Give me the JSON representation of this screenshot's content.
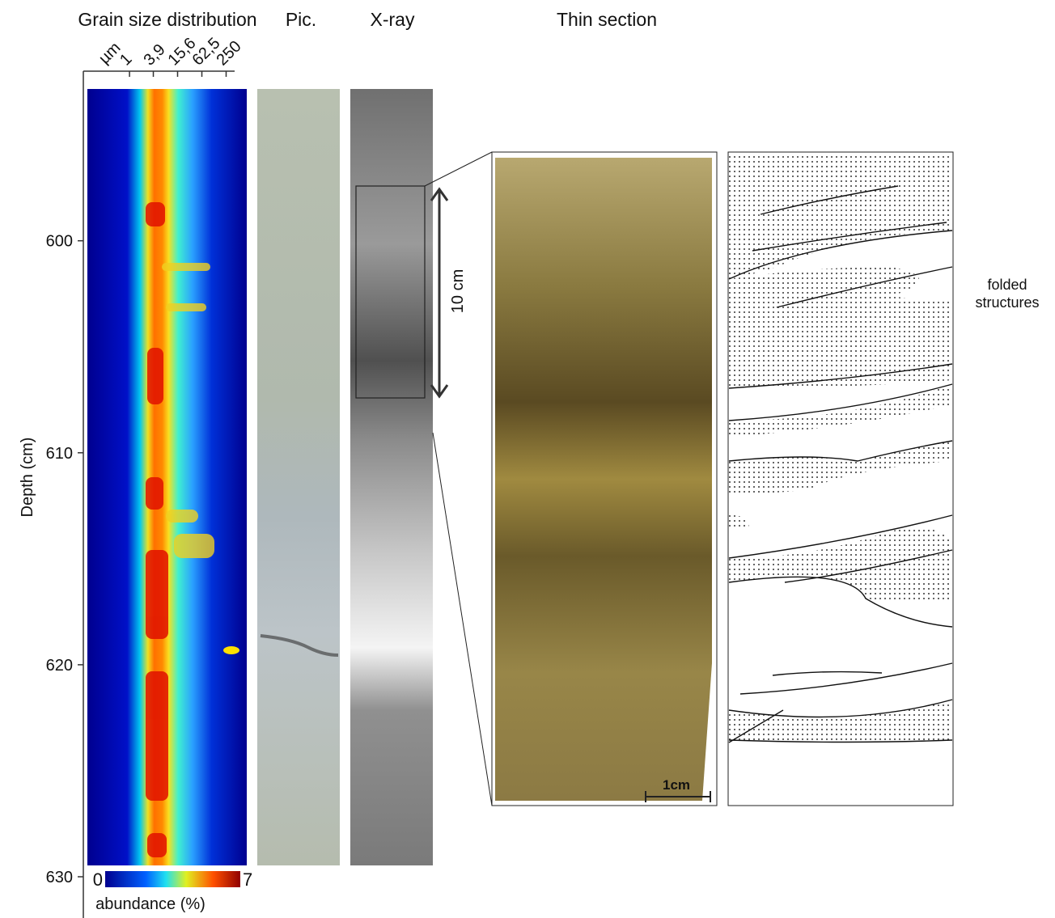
{
  "panels": {
    "grain_size": {
      "title": "Grain size distribution",
      "unit_label": "µm",
      "xscale": "log",
      "xlim": [
        0.09,
        813
      ],
      "xticks": [
        1,
        {
          "value": 3.9,
          "label": "3,9"
        },
        {
          "value": 15.6,
          "label": "15,6"
        },
        {
          "value": 62.5,
          "label": "62,5"
        },
        250
      ],
      "ylabel": "Depth (cm)",
      "ylim": [
        592,
        630
      ],
      "yticks": [
        600,
        610,
        620,
        630
      ],
      "colorbar": {
        "label": "abundance (%)",
        "lim": [
          0,
          7
        ],
        "ticks": [
          0,
          7
        ]
      }
    },
    "picture": {
      "title": "Pic."
    },
    "xray": {
      "title": "X-ray",
      "scale_label": "10 cm"
    },
    "thin_section": {
      "title": "Thin section",
      "scale_label": "1cm"
    },
    "sketch": {
      "annotation": [
        "folded",
        "structures"
      ]
    }
  }
}
